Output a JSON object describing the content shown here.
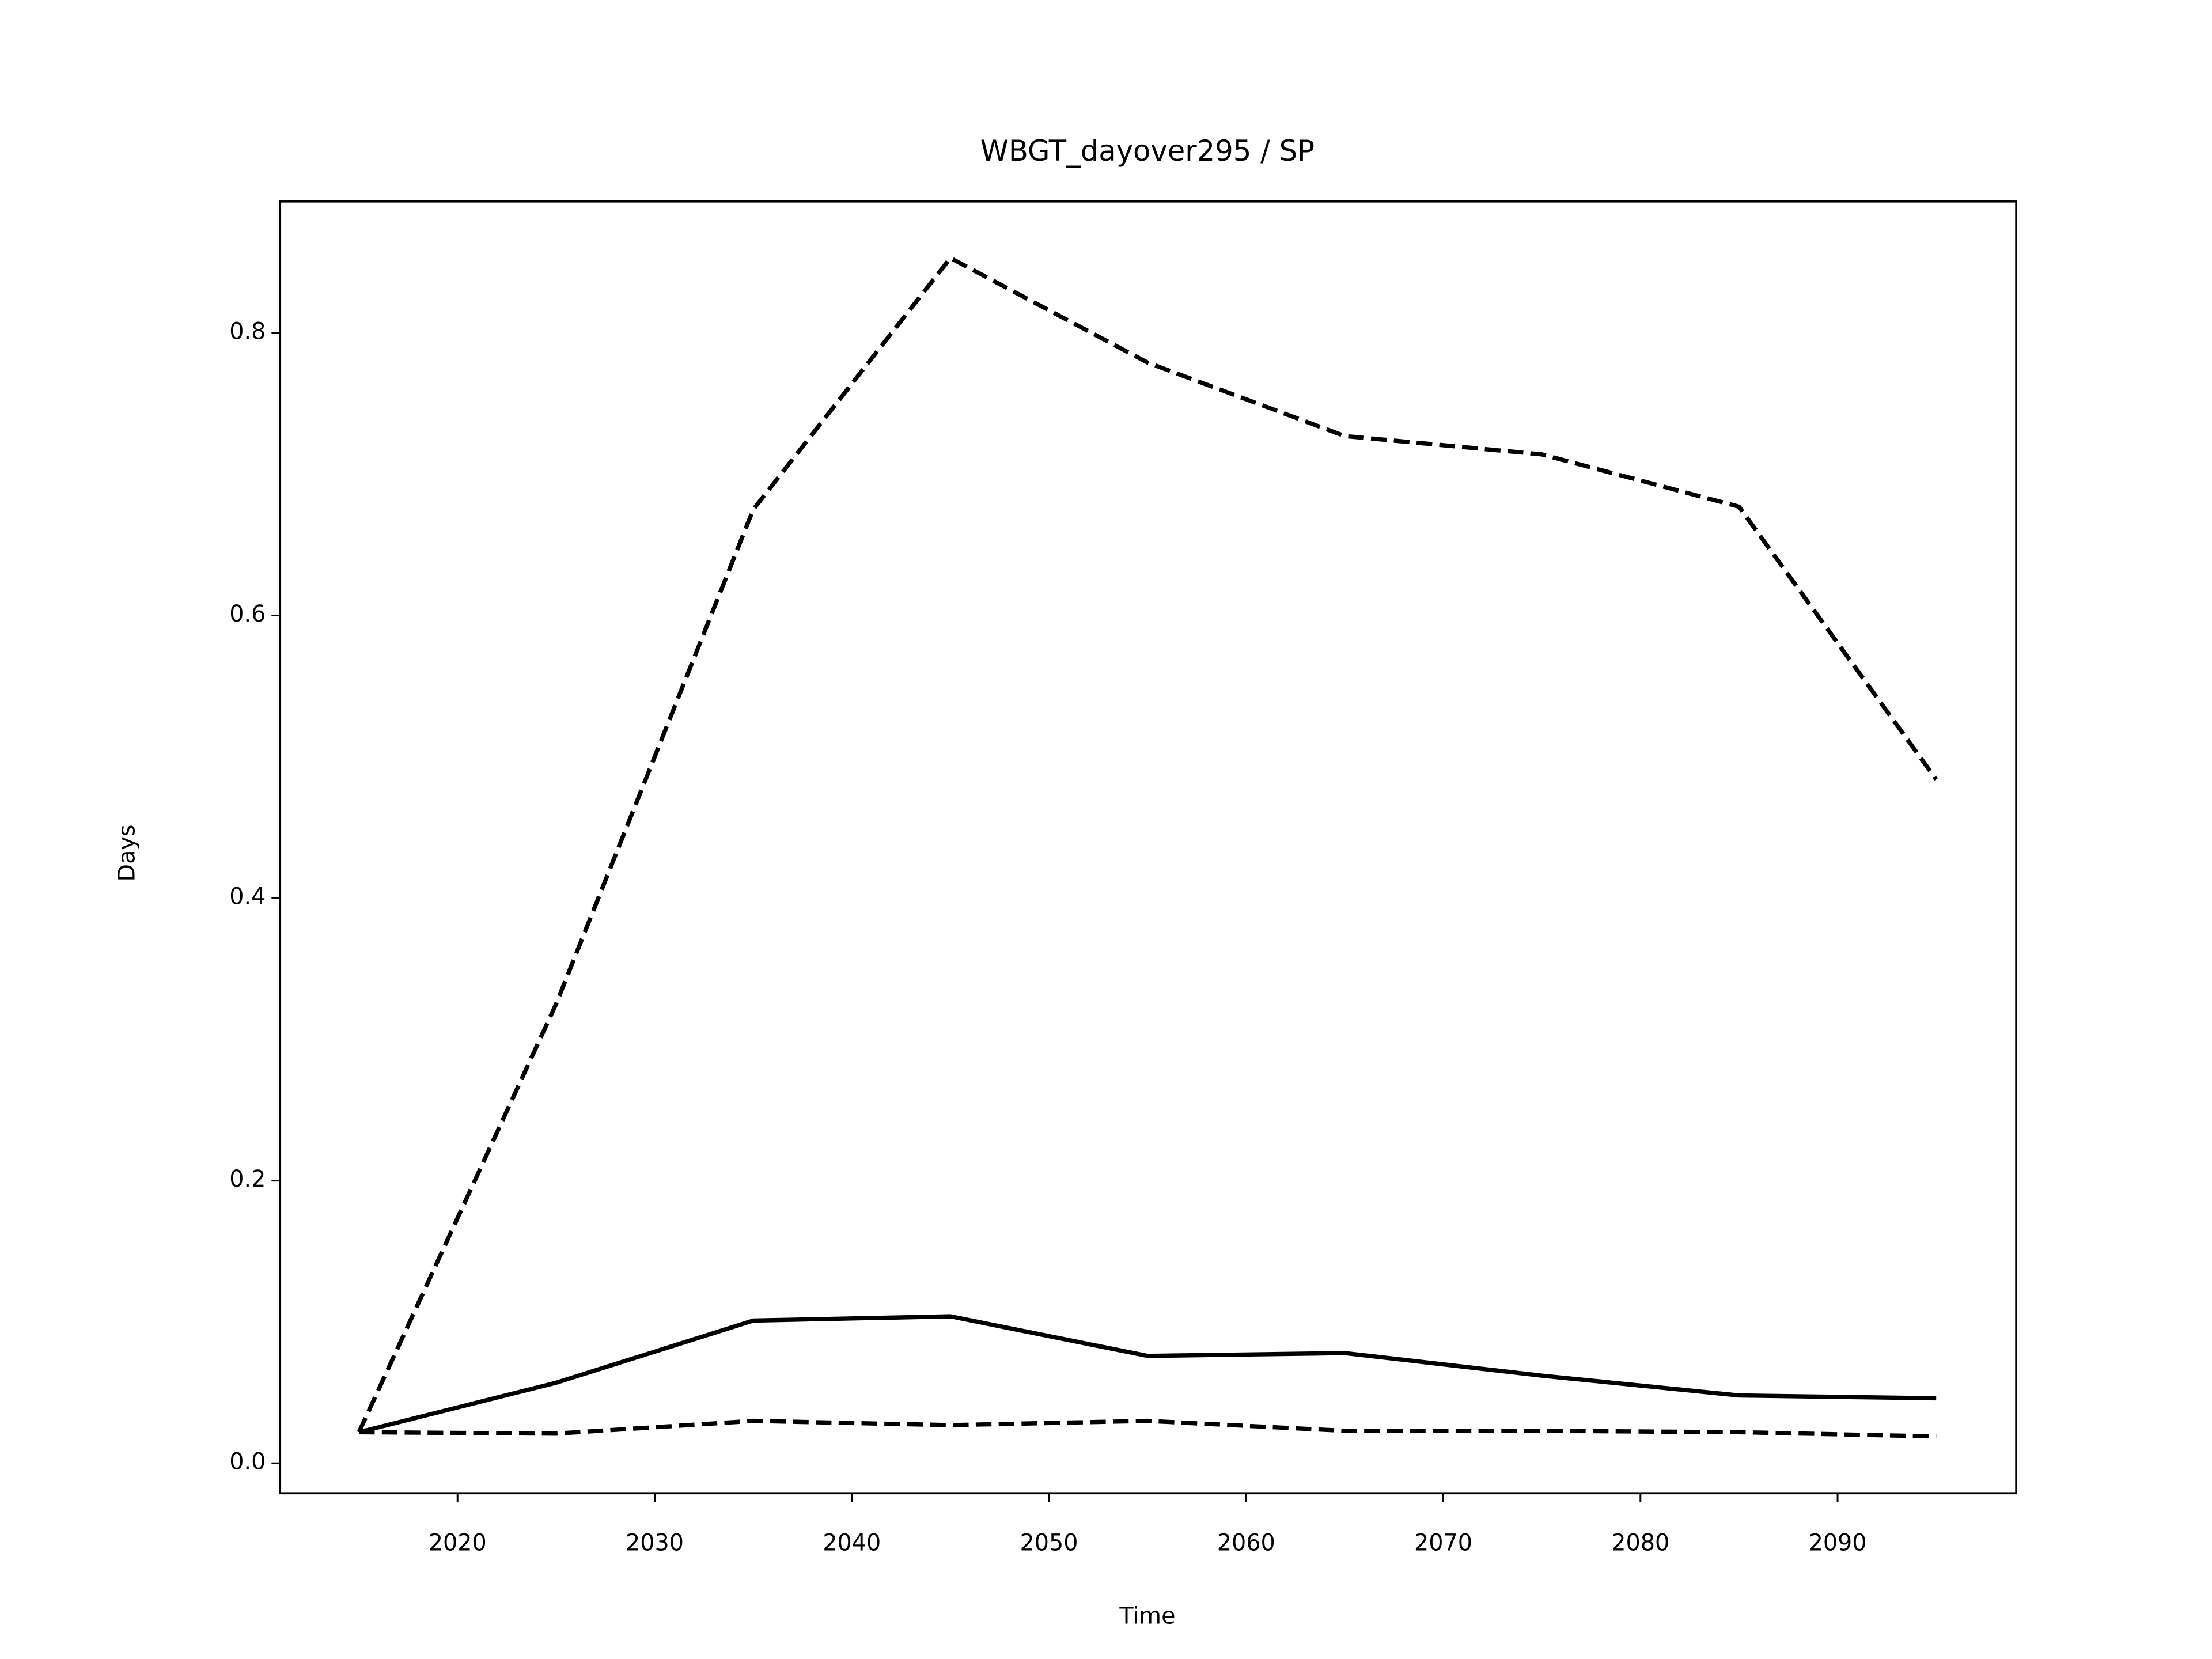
{
  "chart_data": {
    "type": "line",
    "title": "WBGT_dayover295 / SP",
    "xlabel": "Time",
    "ylabel": "Days",
    "x": [
      2015,
      2025,
      2035,
      2045,
      2055,
      2065,
      2075,
      2085,
      2095
    ],
    "series": [
      {
        "color": "#000000",
        "dashed": false,
        "values": [
          0.022,
          0.057,
          0.101,
          0.104,
          0.076,
          0.078,
          0.062,
          0.048,
          0.046
        ]
      },
      {
        "color": "#000000",
        "dashed": true,
        "values": [
          0.022,
          0.325,
          0.675,
          0.853,
          0.779,
          0.727,
          0.714,
          0.677,
          0.484
        ]
      },
      {
        "color": "#000000",
        "dashed": true,
        "values": [
          0.022,
          0.021,
          0.03,
          0.027,
          0.03,
          0.023,
          0.023,
          0.022,
          0.019
        ]
      }
    ],
    "xlim": [
      2011.0,
      2099.06
    ],
    "ylim": [
      -0.0212,
      0.893
    ],
    "xticks": [
      2020,
      2030,
      2040,
      2050,
      2060,
      2070,
      2080,
      2090
    ],
    "yticks": [
      {
        "value": 0,
        "label": "0.0"
      },
      0.2,
      0.4,
      0.6,
      0.8
    ],
    "grid": false
  }
}
